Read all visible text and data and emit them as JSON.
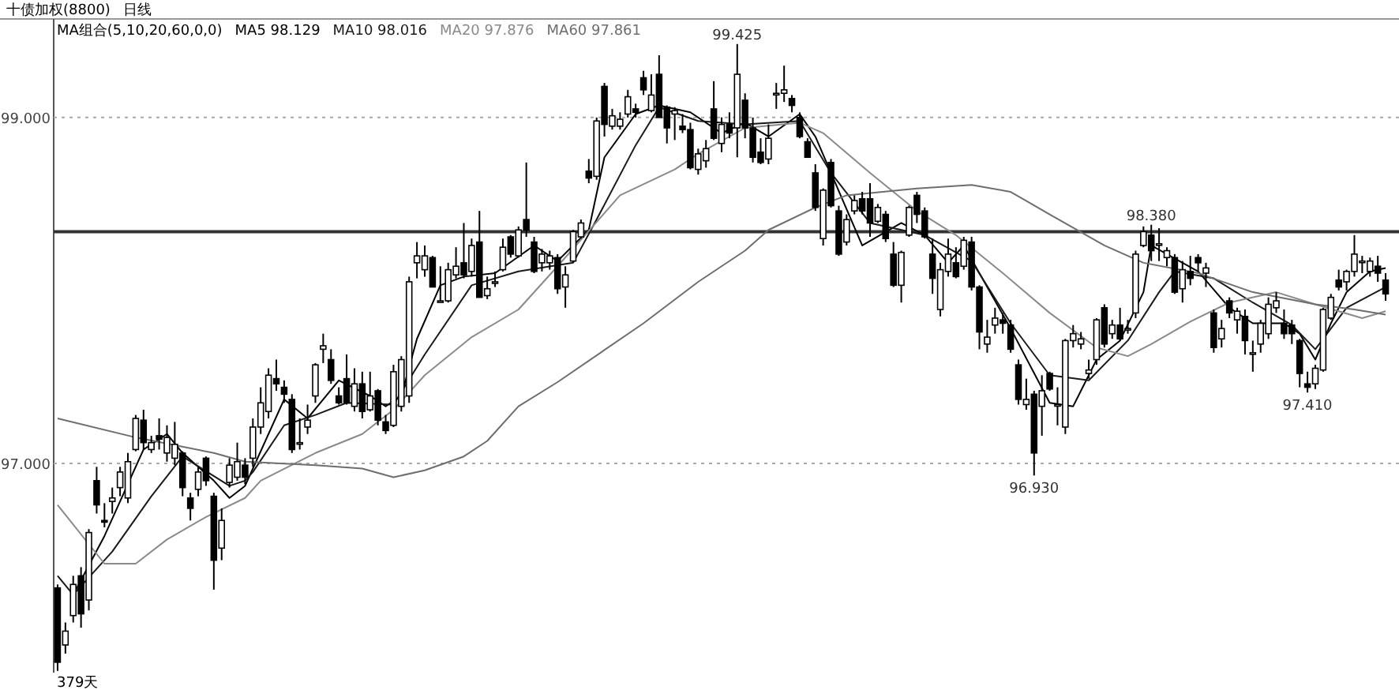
{
  "chart_data": {
    "type": "candlestick",
    "title": "十债加权(8800)",
    "subtitle": "日线",
    "legend_title": "MA组合(5,10,20,60,0,0)",
    "legend": "top left",
    "grid": "y",
    "ylim": [
      95.79,
      99.57
    ],
    "yticks": [
      {
        "value": 97,
        "label": "97.000"
      },
      {
        "value": 99,
        "label": "99.000"
      }
    ],
    "categories": [
      null,
      null,
      null,
      null,
      null,
      null,
      null,
      null,
      null,
      null,
      null,
      null,
      null,
      null,
      null,
      null,
      null,
      null,
      null,
      null,
      null,
      null,
      null,
      null,
      null,
      null,
      null,
      null,
      null,
      null,
      null,
      null,
      null,
      null,
      null,
      null,
      null,
      null,
      null,
      null,
      null,
      null,
      null,
      null,
      null,
      null,
      null,
      null,
      null,
      null,
      null,
      null,
      null,
      null,
      null,
      null,
      null,
      null,
      null,
      null,
      null,
      null,
      null,
      null,
      null,
      null,
      null,
      null,
      null,
      null,
      null,
      null,
      null,
      null,
      null,
      null,
      null,
      null,
      null,
      null,
      null,
      null,
      null,
      null,
      null,
      null,
      null,
      null,
      null,
      null,
      null,
      null,
      null,
      null,
      null,
      null,
      null,
      null,
      null,
      null,
      null,
      null,
      null,
      null,
      null,
      null,
      null,
      null,
      null,
      null,
      null,
      null,
      null,
      null,
      null,
      null,
      null,
      null,
      null,
      null,
      null,
      null,
      null,
      null,
      null,
      null,
      null,
      null,
      null,
      null,
      null,
      null,
      null,
      null,
      null,
      null,
      null,
      null,
      null,
      null,
      null,
      null,
      null,
      null,
      null,
      null,
      null,
      null,
      null,
      null,
      null,
      null,
      null,
      null,
      null,
      null,
      null,
      null,
      null,
      null,
      null,
      null,
      null,
      null,
      null,
      null,
      null,
      null,
      null,
      null,
      null
    ],
    "ohlc": [
      [
        96.28,
        96.3,
        95.8,
        95.85
      ],
      [
        95.95,
        96.08,
        95.9,
        96.03
      ],
      [
        96.12,
        96.35,
        96.08,
        96.3
      ],
      [
        96.35,
        96.4,
        96.05,
        96.13
      ],
      [
        96.21,
        96.62,
        96.15,
        96.6
      ],
      [
        96.9,
        96.98,
        96.71,
        96.76
      ],
      [
        96.67,
        96.77,
        96.63,
        96.66
      ],
      [
        96.78,
        96.86,
        96.71,
        96.8
      ],
      [
        96.86,
        96.98,
        96.81,
        96.95
      ],
      [
        96.8,
        97.06,
        96.77,
        97.01
      ],
      [
        97.08,
        97.28,
        97.07,
        97.26
      ],
      [
        97.25,
        97.31,
        97.08,
        97.12
      ],
      [
        97.08,
        97.16,
        97.06,
        97.12
      ],
      [
        97.16,
        97.26,
        97.08,
        97.14
      ],
      [
        97.06,
        97.22,
        97.01,
        97.15
      ],
      [
        97.03,
        97.24,
        96.99,
        97.11
      ],
      [
        97.06,
        97.07,
        96.81,
        96.86
      ],
      [
        96.8,
        96.83,
        96.67,
        96.74
      ],
      [
        96.85,
        96.98,
        96.81,
        96.95
      ],
      [
        97.03,
        97.04,
        96.87,
        96.9
      ],
      [
        96.81,
        96.83,
        96.27,
        96.44
      ],
      [
        96.51,
        96.74,
        96.44,
        96.67
      ],
      [
        96.89,
        97.03,
        96.86,
        96.99
      ],
      [
        96.92,
        97.12,
        96.9,
        97.01
      ],
      [
        96.99,
        97.03,
        96.88,
        96.92
      ],
      [
        97.03,
        97.26,
        96.98,
        97.21
      ],
      [
        97.21,
        97.44,
        97.17,
        97.35
      ],
      [
        97.3,
        97.55,
        97.26,
        97.51
      ],
      [
        97.49,
        97.6,
        97.42,
        97.46
      ],
      [
        97.44,
        97.48,
        97.35,
        97.4
      ],
      [
        97.37,
        97.4,
        97.06,
        97.08
      ],
      [
        97.12,
        97.26,
        97.08,
        97.12
      ],
      [
        97.21,
        97.34,
        97.17,
        97.25
      ],
      [
        97.39,
        97.58,
        97.35,
        97.57
      ],
      [
        97.66,
        97.75,
        97.58,
        97.68
      ],
      [
        97.6,
        97.66,
        97.46,
        97.48
      ],
      [
        97.39,
        97.44,
        97.34,
        97.35
      ],
      [
        97.49,
        97.63,
        97.34,
        97.35
      ],
      [
        97.33,
        97.55,
        97.3,
        97.46
      ],
      [
        97.46,
        97.53,
        97.26,
        97.3
      ],
      [
        97.31,
        97.53,
        97.3,
        97.39
      ],
      [
        97.42,
        97.43,
        97.22,
        97.25
      ],
      [
        97.24,
        97.28,
        97.17,
        97.19
      ],
      [
        97.22,
        97.57,
        97.21,
        97.53
      ],
      [
        97.33,
        97.62,
        97.3,
        97.6
      ],
      [
        97.39,
        98.08,
        97.35,
        98.05
      ],
      [
        98.16,
        98.28,
        98.07,
        98.2
      ],
      [
        98.12,
        98.26,
        98.08,
        98.2
      ],
      [
        98.19,
        98.2,
        98.02,
        98.02
      ],
      [
        97.94,
        98.14,
        97.93,
        97.94
      ],
      [
        97.94,
        98.16,
        97.93,
        98.12
      ],
      [
        98.09,
        98.25,
        98.07,
        98.14
      ],
      [
        98.16,
        98.39,
        98.07,
        98.09
      ],
      [
        98.11,
        98.3,
        98.08,
        98.26
      ],
      [
        98.28,
        98.46,
        97.96,
        97.96
      ],
      [
        97.97,
        98.08,
        97.95,
        98.01
      ],
      [
        98.05,
        98.11,
        98.02,
        98.05
      ],
      [
        98.12,
        98.3,
        98.11,
        98.25
      ],
      [
        98.31,
        98.32,
        98.19,
        98.21
      ],
      [
        98.2,
        98.37,
        98.19,
        98.35
      ],
      [
        98.41,
        98.74,
        98.31,
        98.35
      ],
      [
        98.28,
        98.31,
        98.1,
        98.11
      ],
      [
        98.16,
        98.24,
        98.11,
        98.21
      ],
      [
        98.16,
        98.23,
        98.12,
        98.2
      ],
      [
        98.19,
        98.21,
        97.98,
        98.01
      ],
      [
        98.02,
        98.14,
        97.9,
        98.09
      ],
      [
        98.17,
        98.35,
        98.16,
        98.34
      ],
      [
        98.31,
        98.41,
        98.3,
        98.39
      ],
      [
        98.69,
        98.76,
        98.62,
        98.65
      ],
      [
        98.66,
        99.0,
        98.64,
        98.98
      ],
      [
        99.18,
        99.2,
        98.89,
        98.96
      ],
      [
        98.95,
        99.05,
        98.93,
        99.01
      ],
      [
        98.95,
        99.03,
        98.93,
        98.99
      ],
      [
        99.02,
        99.16,
        99.0,
        99.12
      ],
      [
        99.05,
        99.08,
        99.0,
        99.03
      ],
      [
        99.23,
        99.27,
        99.13,
        99.16
      ],
      [
        99.04,
        99.25,
        99.03,
        99.13
      ],
      [
        99.25,
        99.36,
        99.0,
        99.0
      ],
      [
        99.06,
        99.07,
        98.85,
        98.94
      ],
      [
        99.02,
        99.06,
        98.87,
        99.04
      ],
      [
        98.95,
        99.02,
        98.91,
        98.93
      ],
      [
        98.93,
        98.97,
        98.7,
        98.71
      ],
      [
        98.7,
        98.82,
        98.67,
        98.79
      ],
      [
        98.75,
        98.87,
        98.71,
        98.82
      ],
      [
        99.05,
        99.21,
        98.87,
        98.88
      ],
      [
        98.85,
        99.0,
        98.8,
        98.96
      ],
      [
        98.96,
        99.03,
        98.88,
        98.91
      ],
      [
        98.94,
        99.425,
        98.77,
        99.25
      ],
      [
        99.1,
        99.14,
        98.88,
        98.94
      ],
      [
        98.94,
        99.0,
        98.74,
        98.77
      ],
      [
        98.8,
        98.88,
        98.73,
        98.74
      ],
      [
        98.76,
        98.96,
        98.73,
        98.88
      ],
      [
        99.14,
        99.2,
        99.05,
        99.14
      ],
      [
        99.14,
        99.3,
        99.09,
        99.16
      ],
      [
        99.11,
        99.13,
        99.03,
        99.07
      ],
      [
        99.0,
        99.03,
        98.88,
        98.89
      ],
      [
        98.86,
        98.88,
        98.77,
        98.77
      ],
      [
        98.68,
        98.73,
        98.46,
        98.48
      ],
      [
        98.3,
        98.59,
        98.26,
        98.58
      ],
      [
        98.74,
        98.76,
        98.48,
        98.49
      ],
      [
        98.46,
        98.49,
        98.2,
        98.21
      ],
      [
        98.28,
        98.44,
        98.26,
        98.41
      ],
      [
        98.46,
        98.55,
        98.44,
        98.52
      ],
      [
        98.53,
        98.57,
        98.44,
        98.46
      ],
      [
        98.53,
        98.62,
        98.31,
        98.39
      ],
      [
        98.4,
        98.5,
        98.39,
        98.48
      ],
      [
        98.44,
        98.46,
        98.28,
        98.3
      ],
      [
        98.21,
        98.28,
        98.02,
        98.03
      ],
      [
        98.03,
        98.23,
        97.93,
        98.22
      ],
      [
        98.32,
        98.49,
        98.31,
        98.48
      ],
      [
        98.55,
        98.57,
        98.39,
        98.44
      ],
      [
        98.46,
        98.48,
        98.3,
        98.31
      ],
      [
        98.21,
        98.3,
        97.98,
        98.07
      ],
      [
        97.89,
        98.16,
        97.85,
        98.12
      ],
      [
        98.11,
        98.3,
        98.08,
        98.21
      ],
      [
        98.16,
        98.25,
        98.07,
        98.08
      ],
      [
        98.14,
        98.31,
        98.12,
        98.29
      ],
      [
        98.28,
        98.31,
        98.0,
        98.02
      ],
      [
        98.02,
        98.03,
        97.66,
        97.76
      ],
      [
        97.69,
        97.83,
        97.64,
        97.73
      ],
      [
        97.8,
        97.9,
        97.75,
        97.84
      ],
      [
        97.83,
        97.87,
        97.75,
        97.81
      ],
      [
        97.8,
        97.83,
        97.64,
        97.66
      ],
      [
        97.57,
        97.6,
        97.34,
        97.37
      ],
      [
        97.34,
        97.49,
        97.31,
        97.37
      ],
      [
        97.4,
        97.42,
        96.93,
        97.06
      ],
      [
        97.33,
        97.51,
        97.16,
        97.42
      ],
      [
        97.52,
        97.53,
        97.42,
        97.43
      ],
      [
        97.34,
        97.44,
        97.22,
        97.34
      ],
      [
        97.21,
        97.72,
        97.17,
        97.71
      ],
      [
        97.71,
        97.8,
        97.67,
        97.75
      ],
      [
        97.69,
        97.76,
        97.66,
        97.72
      ],
      [
        97.52,
        97.6,
        97.49,
        97.54
      ],
      [
        97.6,
        97.84,
        97.57,
        97.83
      ],
      [
        97.9,
        97.92,
        97.67,
        97.69
      ],
      [
        97.75,
        97.83,
        97.72,
        97.8
      ],
      [
        97.8,
        97.9,
        97.71,
        97.72
      ],
      [
        97.78,
        97.83,
        97.75,
        97.78
      ],
      [
        97.87,
        98.23,
        97.84,
        98.21
      ],
      [
        98.26,
        98.37,
        98.25,
        98.34
      ],
      [
        98.32,
        98.38,
        98.17,
        98.23
      ],
      [
        98.27,
        98.36,
        98.17,
        98.27
      ],
      [
        98.19,
        98.25,
        98.14,
        98.23
      ],
      [
        98.19,
        98.21,
        97.98,
        97.99
      ],
      [
        98.01,
        98.17,
        97.93,
        98.12
      ],
      [
        98.11,
        98.2,
        98.03,
        98.07
      ],
      [
        98.19,
        98.21,
        98.11,
        98.16
      ],
      [
        98.1,
        98.16,
        98.02,
        98.13
      ],
      [
        97.87,
        97.89,
        97.64,
        97.67
      ],
      [
        97.72,
        97.83,
        97.67,
        97.78
      ],
      [
        97.94,
        97.96,
        97.84,
        97.87
      ],
      [
        97.83,
        97.9,
        97.75,
        97.88
      ],
      [
        97.85,
        97.89,
        97.63,
        97.71
      ],
      [
        97.64,
        97.71,
        97.53,
        97.64
      ],
      [
        97.69,
        97.83,
        97.64,
        97.81
      ],
      [
        97.75,
        97.96,
        97.72,
        97.92
      ],
      [
        97.9,
        97.99,
        97.87,
        97.94
      ],
      [
        97.81,
        97.89,
        97.72,
        97.75
      ],
      [
        97.8,
        97.83,
        97.69,
        97.75
      ],
      [
        97.71,
        97.72,
        97.44,
        97.52
      ],
      [
        97.46,
        97.53,
        97.41,
        97.44
      ],
      [
        97.46,
        97.57,
        97.43,
        97.55
      ],
      [
        97.54,
        97.9,
        97.53,
        97.89
      ],
      [
        97.84,
        97.98,
        97.83,
        97.96
      ],
      [
        98.06,
        98.12,
        98.0,
        98.02
      ],
      [
        98.05,
        98.12,
        98.0,
        98.11
      ],
      [
        98.11,
        98.32,
        98.08,
        98.21
      ],
      [
        98.17,
        98.2,
        98.1,
        98.17
      ],
      [
        98.11,
        98.19,
        98.08,
        98.17
      ],
      [
        98.14,
        98.2,
        98.05,
        98.1
      ],
      [
        98.06,
        98.1,
        97.94,
        97.98
      ]
    ],
    "series": [
      {
        "name": "MA5 98.129",
        "type": "line",
        "color": "#000000",
        "values": [
          null,
          null,
          96.24,
          null,
          null,
          null,
          96.58,
          null,
          null,
          null,
          null,
          97.08,
          null,
          null,
          97.17,
          null,
          97.06,
          null,
          null,
          null,
          96.9,
          null,
          96.8,
          null,
          96.87,
          96.97,
          null,
          null,
          null,
          97.37,
          null,
          null,
          97.26,
          null,
          null,
          null,
          97.48,
          null,
          null,
          null,
          97.39,
          null,
          97.33,
          null,
          97.39,
          null,
          97.72,
          null,
          null,
          98.03,
          null,
          null,
          98.08,
          null,
          null,
          null,
          98.1,
          null,
          null,
          null,
          null,
          98.26,
          null,
          null,
          98.17,
          null,
          null,
          null,
          98.35,
          null,
          98.77,
          null,
          null,
          null,
          99.02,
          null,
          null,
          99.07,
          null,
          null,
          null,
          99.03,
          null,
          null,
          null,
          98.91,
          null,
          null,
          98.97,
          null,
          null,
          98.89,
          null,
          null,
          null,
          99.02,
          null,
          98.89,
          null,
          null,
          null,
          null,
          null,
          98.26,
          null,
          null,
          null,
          null,
          98.39,
          null,
          null,
          98.32,
          null,
          null,
          98.16,
          null,
          98.26,
          null,
          null,
          null,
          null,
          null,
          97.78,
          null,
          null,
          null,
          null,
          97.35,
          null,
          null,
          97.33,
          null,
          null,
          97.6,
          null,
          null,
          97.71,
          null,
          null,
          97.99,
          98.26,
          null,
          98.21,
          null,
          null,
          null,
          98.11,
          null,
          null,
          null,
          97.9,
          null,
          null,
          97.81,
          null,
          null,
          null,
          97.81,
          null,
          97.75,
          null,
          97.6,
          null,
          97.81,
          null,
          97.99,
          null,
          null,
          98.11,
          null,
          98.13
        ]
      },
      {
        "name": "MA10 98.016",
        "type": "line",
        "color": "#1a1a1a",
        "values": [
          96.35,
          null,
          96.24,
          null,
          null,
          null,
          null,
          96.49,
          null,
          null,
          null,
          null,
          96.81,
          null,
          null,
          null,
          97.04,
          null,
          null,
          null,
          null,
          null,
          96.87,
          null,
          96.9,
          96.95,
          null,
          null,
          null,
          97.22,
          null,
          null,
          null,
          97.28,
          null,
          null,
          null,
          97.35,
          null,
          null,
          null,
          null,
          null,
          97.34,
          null,
          null,
          null,
          97.63,
          null,
          null,
          null,
          null,
          null,
          98.03,
          null,
          null,
          null,
          null,
          null,
          98.11,
          null,
          null,
          null,
          null,
          null,
          null,
          98.16,
          null,
          null,
          98.41,
          null,
          null,
          null,
          null,
          98.84,
          null,
          null,
          99.06,
          null,
          null,
          null,
          null,
          98.98,
          null,
          null,
          null,
          null,
          null,
          98.96,
          null,
          null,
          null,
          null,
          null,
          null,
          98.98,
          null,
          null,
          null,
          98.68,
          null,
          null,
          null,
          null,
          98.39,
          null,
          null,
          null,
          null,
          null,
          null,
          98.32,
          null,
          null,
          null,
          null,
          null,
          98.17,
          null,
          null,
          null,
          null,
          97.81,
          null,
          null,
          null,
          null,
          97.51,
          null,
          null,
          null,
          null,
          97.48,
          null,
          null,
          null,
          null,
          97.71,
          null,
          null,
          null,
          97.99,
          null,
          98.11,
          null,
          null,
          null,
          null,
          98.07,
          null,
          null,
          null,
          null,
          97.93,
          null,
          null,
          null,
          null,
          97.8,
          null,
          null,
          97.66,
          null,
          null,
          null,
          97.9,
          null,
          null,
          null,
          null,
          98.02
        ]
      },
      {
        "name": "MA20 97.876",
        "type": "line",
        "color": "#8a8a8a",
        "values": [
          96.76,
          null,
          null,
          null,
          null,
          null,
          96.42,
          null,
          null,
          null,
          96.42,
          null,
          null,
          null,
          96.56,
          null,
          null,
          null,
          null,
          96.69,
          null,
          null,
          null,
          null,
          96.8,
          null,
          96.9,
          null,
          null,
          null,
          null,
          null,
          null,
          97.06,
          null,
          null,
          null,
          null,
          null,
          97.17,
          null,
          null,
          null,
          97.31,
          null,
          null,
          null,
          97.51,
          null,
          null,
          null,
          null,
          null,
          97.73,
          null,
          null,
          null,
          null,
          null,
          97.89,
          null,
          null,
          null,
          null,
          98.14,
          null,
          null,
          null,
          null,
          null,
          null,
          null,
          98.55,
          null,
          null,
          null,
          null,
          null,
          null,
          98.7,
          null,
          null,
          98.79,
          null,
          null,
          null,
          null,
          null,
          98.94,
          null,
          null,
          null,
          null,
          null,
          null,
          98.97,
          null,
          null,
          98.91,
          null,
          null,
          null,
          null,
          null,
          98.68,
          null,
          null,
          null,
          null,
          null,
          98.46,
          null,
          null,
          null,
          null,
          98.32,
          null,
          null,
          null,
          null,
          null,
          98.1,
          null,
          null,
          null,
          null,
          null,
          97.87,
          null,
          null,
          null,
          null,
          null,
          97.67,
          null,
          null,
          null,
          97.62,
          null,
          null,
          97.69,
          null,
          null,
          null,
          null,
          97.82,
          null,
          null,
          null,
          null,
          97.93,
          null,
          null,
          null,
          null,
          null,
          97.99,
          null,
          null,
          null,
          null,
          97.92,
          null,
          null,
          null,
          null,
          null,
          97.84,
          null,
          null,
          97.88
        ]
      },
      {
        "name": "MA60 97.861",
        "type": "line",
        "color": "#6e6e6e",
        "values": [
          97.26,
          null,
          null,
          null,
          null,
          null,
          null,
          null,
          null,
          null,
          97.15,
          null,
          null,
          null,
          null,
          null,
          null,
          null,
          null,
          null,
          97.06,
          null,
          null,
          null,
          97.01,
          null,
          null,
          null,
          null,
          null,
          null,
          null,
          null,
          96.99,
          null,
          null,
          null,
          null,
          null,
          96.97,
          null,
          null,
          null,
          96.92,
          null,
          null,
          null,
          96.96,
          null,
          null,
          null,
          null,
          97.04,
          null,
          null,
          97.13,
          null,
          null,
          null,
          97.33,
          null,
          null,
          null,
          null,
          97.47,
          null,
          null,
          null,
          null,
          null,
          null,
          null,
          null,
          null,
          null,
          97.81,
          null,
          null,
          null,
          null,
          null,
          null,
          98.05,
          null,
          null,
          null,
          null,
          null,
          98.23,
          null,
          null,
          98.35,
          null,
          null,
          null,
          null,
          null,
          98.48,
          null,
          null,
          null,
          98.55,
          null,
          null,
          null,
          null,
          null,
          null,
          null,
          null,
          98.59,
          null,
          null,
          null,
          null,
          null,
          null,
          98.61,
          null,
          null,
          null,
          null,
          98.57,
          null,
          null,
          null,
          null,
          98.44,
          null,
          null,
          null,
          null,
          null,
          null,
          98.26,
          null,
          null,
          null,
          null,
          98.16,
          null,
          null,
          null,
          null,
          null,
          null,
          98.1,
          null,
          null,
          null,
          null,
          null,
          null,
          97.99,
          null,
          null,
          null,
          null,
          null,
          null,
          null,
          97.92,
          null,
          null,
          null,
          null,
          97.89,
          null,
          null,
          null,
          97.86
        ]
      }
    ],
    "ref_lines": [
      {
        "axis": "y",
        "value": 98.34,
        "color": "#333333"
      }
    ],
    "annotations": [
      {
        "text": "99.425",
        "y": 99.425
      },
      {
        "text": "98.380",
        "y": 98.38
      },
      {
        "text": "96.930",
        "y": 96.93
      },
      {
        "text": "97.410",
        "y": 97.41
      },
      "379天"
    ]
  }
}
